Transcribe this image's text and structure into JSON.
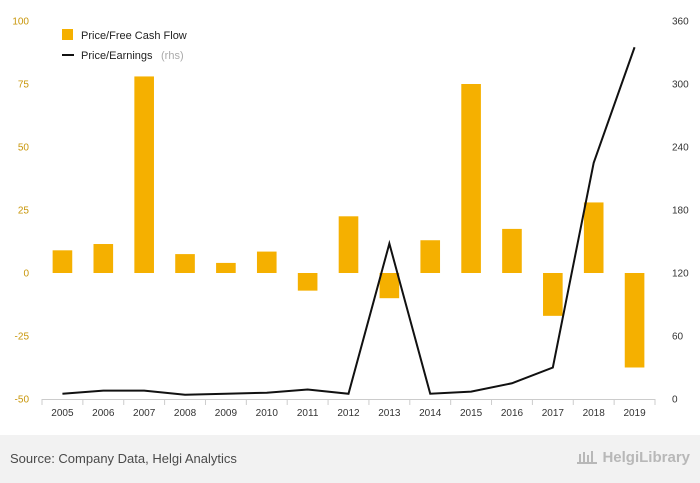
{
  "chart_data": {
    "type": "bar",
    "categories": [
      "2005",
      "2006",
      "2007",
      "2008",
      "2009",
      "2010",
      "2011",
      "2012",
      "2013",
      "2014",
      "2015",
      "2016",
      "2017",
      "2018",
      "2019"
    ],
    "series": [
      {
        "name": "Price/Free Cash Flow",
        "type": "bar",
        "axis": "left",
        "color": "#f5b000",
        "values": [
          9,
          11.5,
          78,
          7.5,
          4,
          8.5,
          -7,
          22.5,
          -10,
          13,
          75,
          17.5,
          -17,
          28,
          -37.5
        ]
      },
      {
        "name": "Price/Earnings",
        "suffix": "(rhs)",
        "type": "line",
        "axis": "right",
        "color": "#111111",
        "values": [
          5,
          8,
          8,
          4,
          5,
          6,
          9,
          5,
          148,
          5,
          7,
          15,
          30,
          225,
          335
        ]
      }
    ],
    "y_left": {
      "ylim": [
        -50,
        100
      ],
      "ticks": [
        "-50",
        "-25",
        "0",
        "25",
        "50",
        "75",
        "100"
      ]
    },
    "y_right": {
      "ylim": [
        0,
        360
      ],
      "ticks": [
        "0",
        "60",
        "120",
        "180",
        "240",
        "300",
        "360"
      ]
    },
    "legend_placement": "top-left",
    "grid": false
  },
  "footer": {
    "source": "Source: Company Data, Helgi Analytics",
    "brand": "HelgiLibrary"
  }
}
